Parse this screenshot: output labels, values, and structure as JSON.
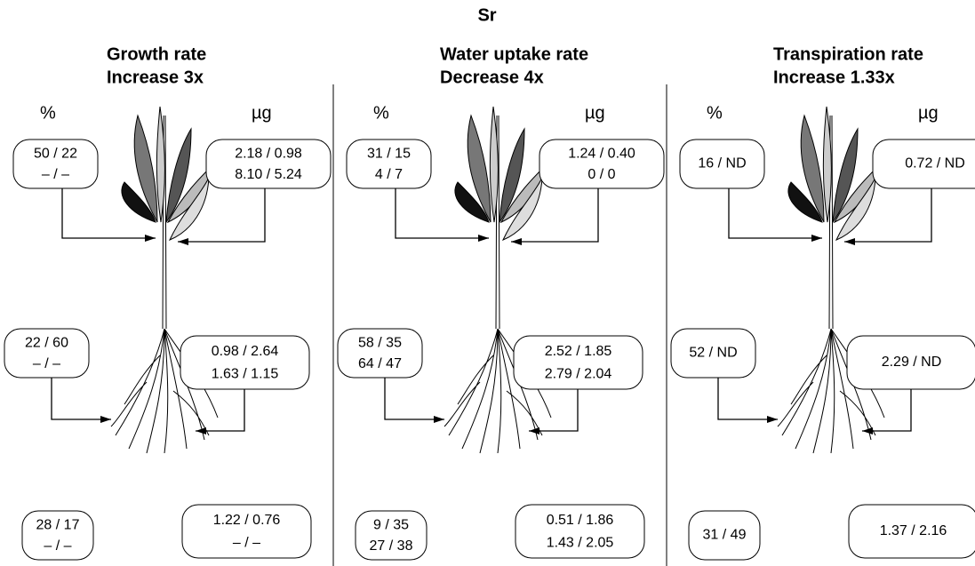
{
  "title": "Sr",
  "panels": [
    {
      "title": [
        "Growth rate",
        "Increase 3x"
      ],
      "left_label": "%",
      "right_label": "µg",
      "boxes": [
        [
          "50 / 22",
          "– / –"
        ],
        [
          "2.18 / 0.98",
          "8.10 / 5.24"
        ],
        [
          "22 / 60",
          "– / –"
        ],
        [
          "0.98 / 2.64",
          "1.63 / 1.15"
        ],
        [
          "28 / 17",
          "– / –"
        ],
        [
          "1.22 / 0.76",
          "– / –"
        ]
      ]
    },
    {
      "title": [
        "Water uptake rate",
        "Decrease 4x"
      ],
      "left_label": "%",
      "right_label": "µg",
      "boxes": [
        [
          "31 / 15",
          "4 / 7"
        ],
        [
          "1.24 / 0.40",
          "0 / 0"
        ],
        [
          "58 / 35",
          "64 / 47"
        ],
        [
          "2.52 / 1.85",
          "2.79 / 2.04"
        ],
        [
          "9 / 35",
          "27 / 38"
        ],
        [
          "0.51 / 1.86",
          "1.43 / 2.05"
        ]
      ]
    },
    {
      "title": [
        "Transpiration rate",
        "Increase 1.33x"
      ],
      "left_label": "%",
      "right_label": "µg",
      "boxes": [
        [
          "16 / ND"
        ],
        [
          "0.72 / ND"
        ],
        [
          "52 / ND"
        ],
        [
          "2.29 / ND"
        ],
        [
          "31 / 49"
        ],
        [
          "1.37 / 2.16"
        ]
      ]
    }
  ]
}
